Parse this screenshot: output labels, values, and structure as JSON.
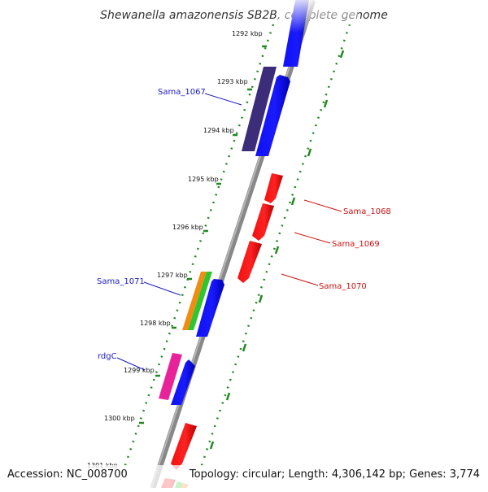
{
  "title": "Shewanella amazonensis SB2B, complete genome",
  "footer": {
    "accession": "Accession: NC_008700",
    "summary": "Topology: circular; Length: 4,306,142 bp; Genes: 3,774"
  },
  "ticks": [
    "1292 kbp",
    "1293 kbp",
    "1294 kbp",
    "1295 kbp",
    "1296 kbp",
    "1297 kbp",
    "1298 kbp",
    "1299 kbp",
    "1300 kbp",
    "1301 kbp"
  ],
  "gene_labels": {
    "sama_1067": "Sama_1067",
    "sama_1068": "Sama_1068",
    "sama_1069": "Sama_1069",
    "sama_1070": "Sama_1070",
    "sama_1071": "Sama_1071",
    "rdgc": "rdgC"
  },
  "colors": {
    "forward": "#0000ee",
    "reverse": "#ee0000",
    "sama_1067": "#3b2d7a",
    "orange": "#f08c10",
    "green": "#2ec52e",
    "magenta": "#e8239a",
    "backbone": "#808080",
    "tick_marks": "#228822"
  }
}
